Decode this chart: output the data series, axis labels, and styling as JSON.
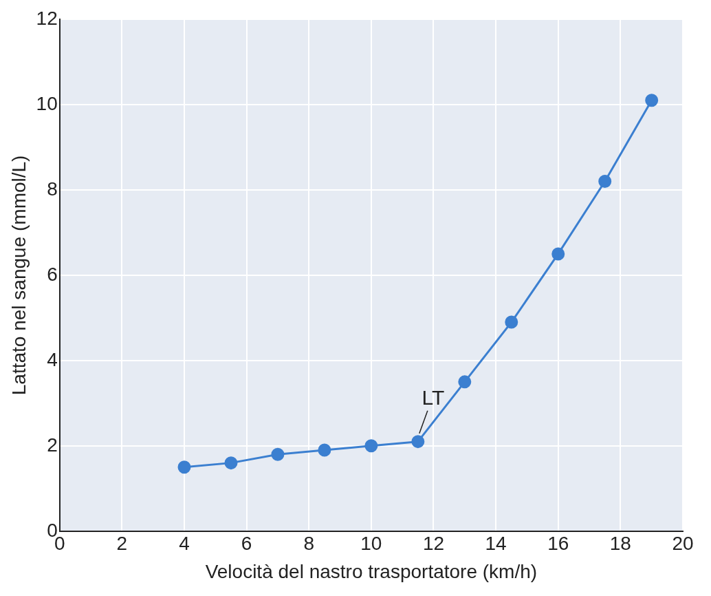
{
  "chart_data": {
    "type": "line",
    "xlabel": "Velocità del nastro trasportatore (km/h)",
    "ylabel": "Lattato nel sangue (mmol/L)",
    "x": [
      4,
      5.5,
      7,
      8.5,
      10,
      11.5,
      13,
      14.5,
      16,
      17.5,
      19
    ],
    "series": [
      {
        "color": "#3b7fd0",
        "values": [
          1.5,
          1.6,
          1.8,
          1.9,
          2.0,
          2.1,
          3.5,
          4.9,
          6.5,
          8.2,
          10.1
        ]
      }
    ],
    "xlim": [
      0,
      20
    ],
    "xticks": [
      0,
      2,
      4,
      6,
      8,
      10,
      12,
      14,
      16,
      18,
      20
    ],
    "ylim": [
      0,
      12
    ],
    "yticks": [
      0,
      2,
      4,
      6,
      8,
      10,
      12
    ],
    "grid": true,
    "marker": "circle",
    "line_style": "solid",
    "legend": false,
    "annotations": [
      {
        "text": "LT",
        "x": 11.5,
        "y": 2.1
      }
    ]
  }
}
